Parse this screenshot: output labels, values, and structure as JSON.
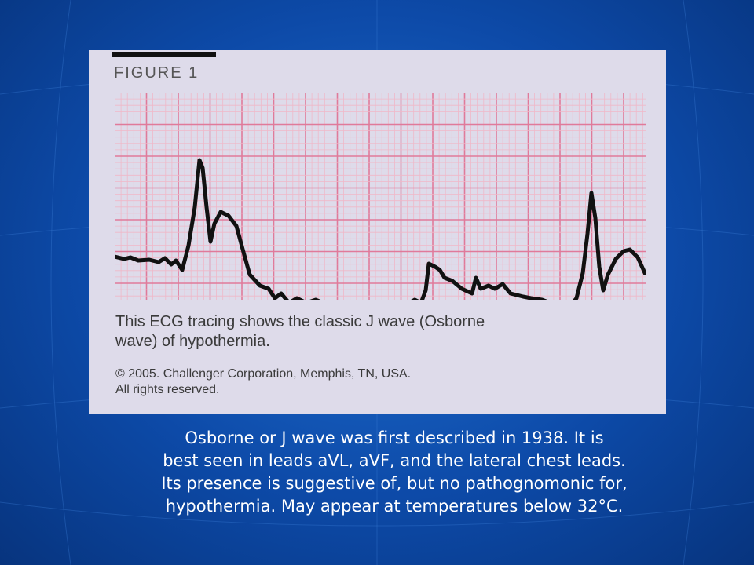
{
  "figure": {
    "label": "FIGURE 1",
    "caption": [
      "This ECG tracing shows the classic J wave (Osborne",
      "wave) of hypothermia."
    ],
    "copyright": [
      "© 2005. Challenger Corporation, Memphis, TN, USA.",
      "All rights reserved."
    ]
  },
  "slide_text": [
    "Osborne or J wave was first described in 1938.  It is",
    "best seen in leads aVL, aVF, and the lateral chest leads.",
    "Its presence is suggestive of, but no pathognomonic for,",
    "hypothermia.  May appear at temperatures below 32°C."
  ]
}
